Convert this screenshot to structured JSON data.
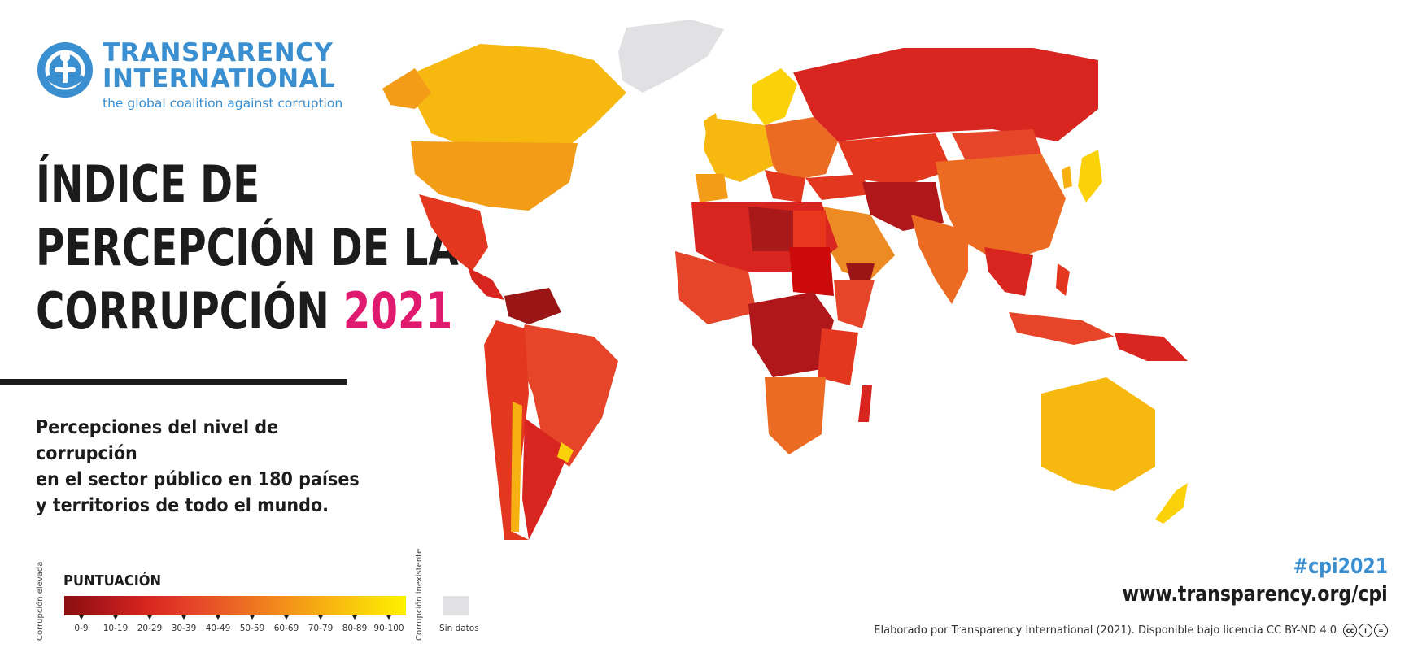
{
  "brand": {
    "name_line1": "TRANSPARENCY",
    "name_line2": "INTERNATIONAL",
    "tagline": "the global coalition against corruption",
    "color": "#3a8fd1"
  },
  "title": {
    "line1": "ÍNDICE DE",
    "line2": "PERCEPCIÓN DE LA",
    "line3": "CORRUPCIÓN",
    "year": "2021",
    "year_color": "#e01a6f"
  },
  "subtitle": {
    "line1": "Percepciones del nivel de corrupción",
    "line2": "en el sector público en 180 países",
    "line3": "y territorios de todo el mundo."
  },
  "legend": {
    "title": "PUNTUACIÓN",
    "low_label": "Corrupción elevada",
    "high_label": "Corrupción inexistente",
    "ranges": [
      "0-9",
      "10-19",
      "20-29",
      "30-39",
      "40-49",
      "50-59",
      "60-69",
      "70-79",
      "80-89",
      "90-100"
    ],
    "no_data_label": "Sin datos",
    "colors": [
      "#8b0f0f",
      "#b0171b",
      "#d8251f",
      "#e6452a",
      "#ec6b23",
      "#f38f1b",
      "#f7b011",
      "#fbd20a",
      "#fde90c",
      "#fff000"
    ],
    "no_data_color": "#e1e1e3"
  },
  "footer": {
    "hashtag": "#cpi2021",
    "url": "www.transparency.org/cpi",
    "credit": "Elaborado por Transparency International (2021). Disponible bajo licencia CC BY-ND 4.0",
    "license_icons": [
      "cc-icon",
      "by-icon",
      "nd-icon"
    ]
  }
}
